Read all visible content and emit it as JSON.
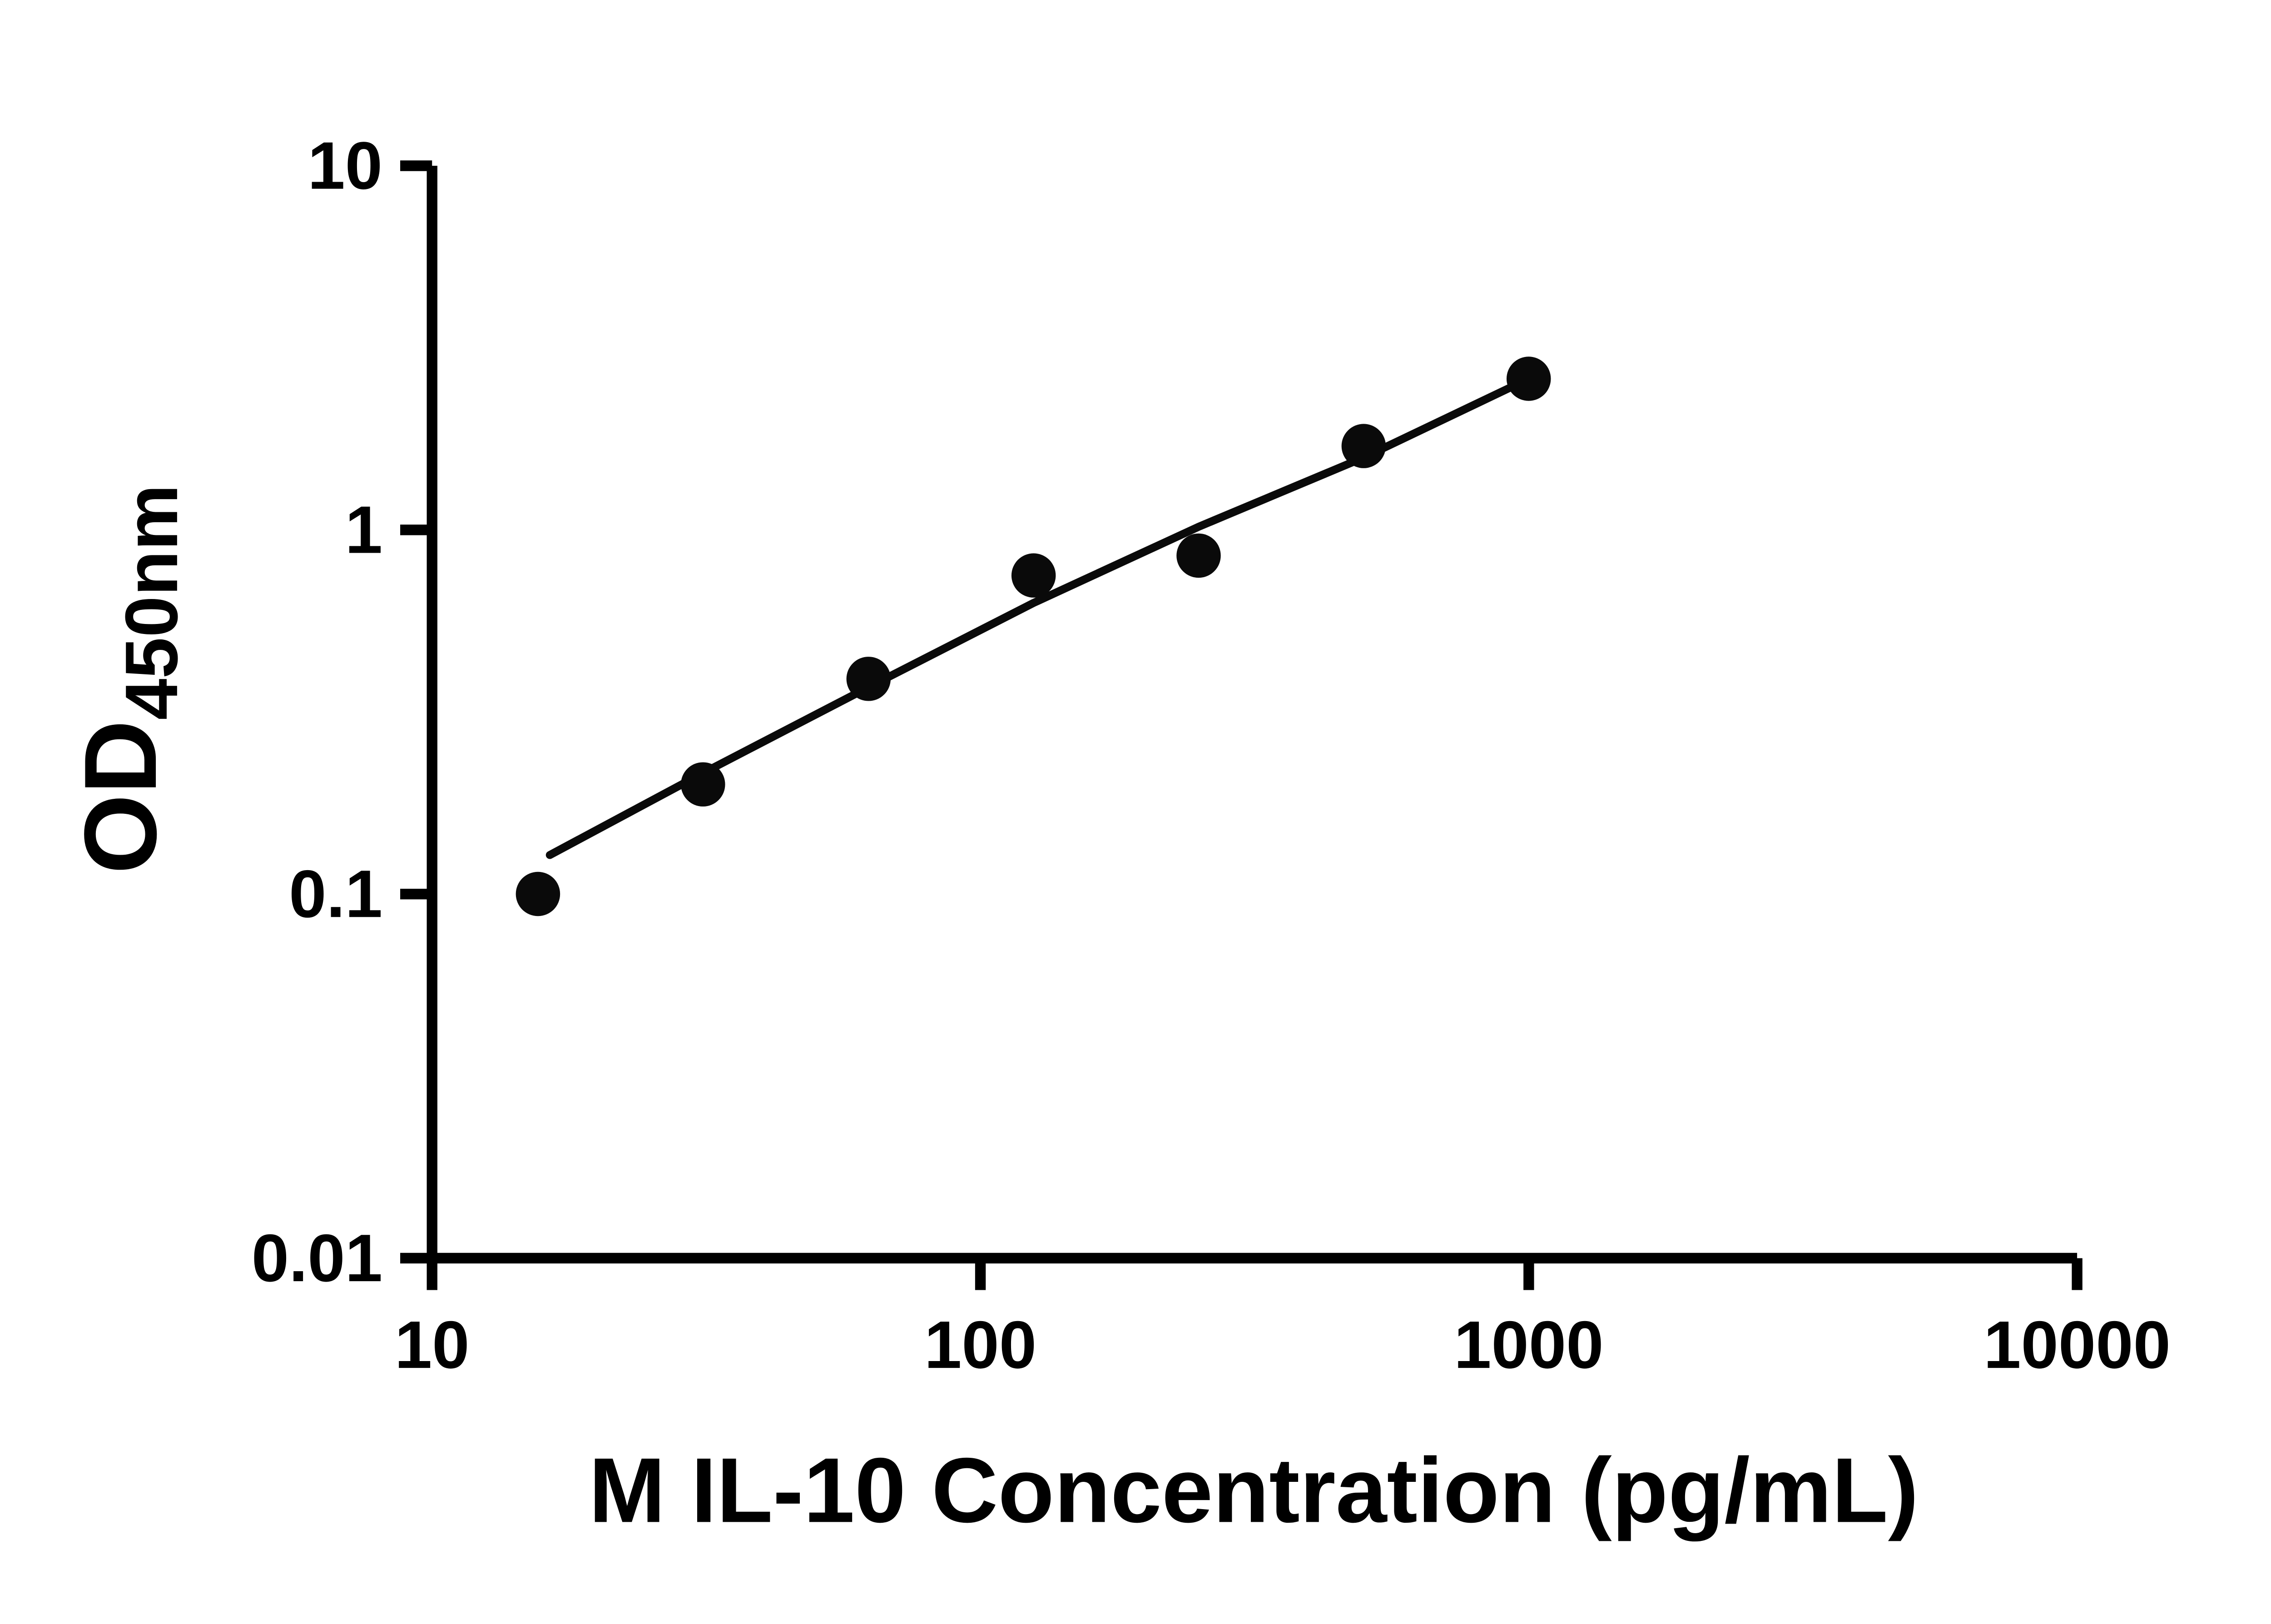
{
  "figure": {
    "background": "#ffffff"
  },
  "chart_data": {
    "type": "scatter",
    "title": "",
    "xlabel": "M IL-10 Concentration (pg/mL)",
    "ylabel": "OD450nm",
    "ylabel_main": "OD",
    "ylabel_sub": "450nm",
    "x_scale": "log",
    "y_scale": "log",
    "xlim": [
      10,
      10000
    ],
    "ylim": [
      0.01,
      10
    ],
    "x_ticks": [
      10,
      100,
      1000,
      10000
    ],
    "x_tick_labels": [
      "10",
      "100",
      "1000",
      "10000"
    ],
    "y_ticks": [
      0.01,
      0.1,
      1,
      10
    ],
    "y_tick_labels": [
      "0.01",
      "0.1",
      "1",
      "10"
    ],
    "grid": false,
    "legend": false,
    "axis_color": "#000000",
    "point_color": "#0a0a0a",
    "line_color": "#0a0a0a",
    "points": [
      {
        "x": 15.6,
        "y": 0.1
      },
      {
        "x": 31.2,
        "y": 0.2
      },
      {
        "x": 62.5,
        "y": 0.39
      },
      {
        "x": 125,
        "y": 0.75
      },
      {
        "x": 250,
        "y": 0.85
      },
      {
        "x": 500,
        "y": 1.7
      },
      {
        "x": 1000,
        "y": 2.6
      }
    ],
    "trend_line": [
      {
        "x": 16.4,
        "y": 0.128
      },
      {
        "x": 31.2,
        "y": 0.215
      },
      {
        "x": 62.5,
        "y": 0.37
      },
      {
        "x": 125,
        "y": 0.63
      },
      {
        "x": 250,
        "y": 1.02
      },
      {
        "x": 500,
        "y": 1.58
      },
      {
        "x": 1000,
        "y": 2.6
      }
    ]
  }
}
